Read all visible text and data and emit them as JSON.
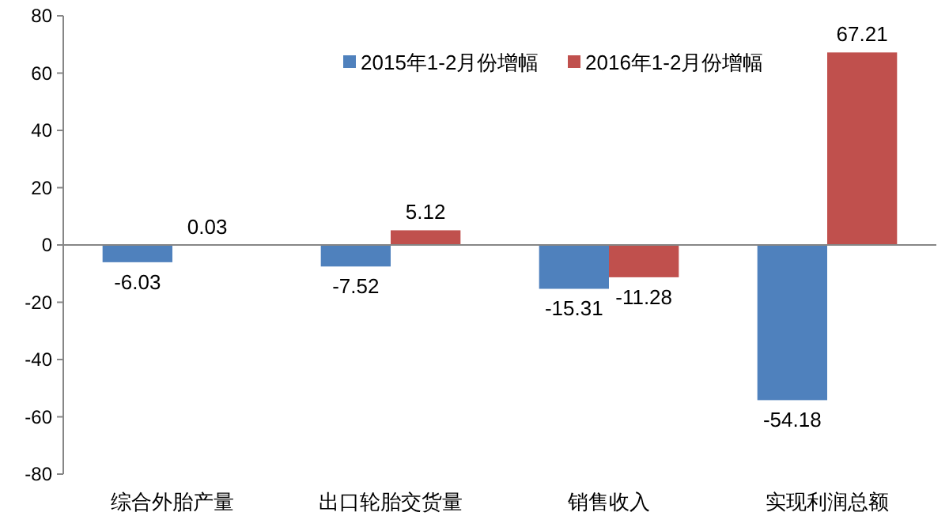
{
  "chart_data": {
    "type": "bar",
    "categories": [
      "综合外胎产量",
      "出口轮胎交货量",
      "销售收入",
      "实现利润总额"
    ],
    "series": [
      {
        "name": "2015年1-2月份增幅",
        "color": "#4f81bd",
        "values": [
          -6.03,
          -7.52,
          -15.31,
          -54.18
        ]
      },
      {
        "name": "2016年1-2月份增幅",
        "color": "#c0504d",
        "values": [
          0.03,
          5.12,
          -11.28,
          67.21
        ]
      }
    ],
    "ylim": [
      -80,
      80
    ],
    "yticks": [
      -80,
      -60,
      -40,
      -20,
      0,
      20,
      40,
      60,
      80
    ],
    "data_labels": true,
    "legend": "top"
  }
}
